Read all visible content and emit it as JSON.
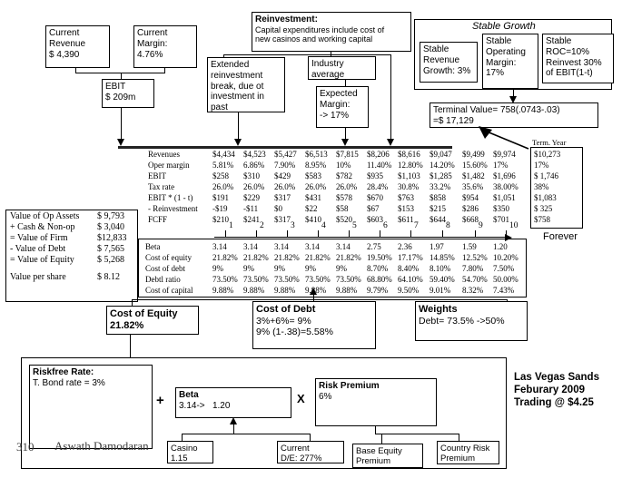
{
  "top": {
    "current_revenue": "Current\nRevenue\n$ 4,390",
    "current_margin": "Current\nMargin:\n4.76%",
    "ebit": "EBIT\n$ 209m",
    "reinvestment_title": "Reinvestment:",
    "reinvestment_body": "Capital expenditures include cost of\nnew casinos and working capital",
    "extended_break": "Extended\nreinvestment\nbreak, due ot\ninvestment in\npast",
    "industry_average": "Industry\naverage",
    "expected_margin": "Expected\nMargin:\n-> 17%"
  },
  "stable_growth": {
    "title": "Stable Growth",
    "revenue_growth": "Stable\nRevenue\nGrowth: 3%",
    "operating_margin": "Stable\nOperating\nMargin:\n17%",
    "roc": "Stable\nROC=10%\nReinvest 30%\nof EBIT(1-t)"
  },
  "terminal_value": "Terminal Value= 758(.0743-.03)\n=$ 17,129",
  "term_year_label": "Term. Year",
  "cashflow_table": {
    "rows": [
      {
        "label": "Revenues",
        "values": [
          "$4,434",
          "$4,523",
          "$5,427",
          "$6,513",
          "$7,815",
          "$8,206",
          "$8,616",
          "$9,047",
          "$9,499",
          "$9,974"
        ],
        "term": "$10,273"
      },
      {
        "label": "Oper margin",
        "values": [
          "5.81%",
          "6.86%",
          "7.90%",
          "8.95%",
          "10%",
          "11.40%",
          "12.80%",
          "14.20%",
          "15.60%",
          "17%"
        ],
        "term": "17%"
      },
      {
        "label": "EBIT",
        "values": [
          "$258",
          "$310",
          "$429",
          "$583",
          "$782",
          "$935",
          "$1,103",
          "$1,285",
          "$1,482",
          "$1,696"
        ],
        "term": "$ 1,746"
      },
      {
        "label": "Tax rate",
        "values": [
          "26.0%",
          "26.0%",
          "26.0%",
          "26.0%",
          "26.0%",
          "28.4%",
          "30.8%",
          "33.2%",
          "35.6%",
          "38.00%"
        ],
        "term": "38%"
      },
      {
        "label": "EBIT * (1 - t)",
        "values": [
          "$191",
          "$229",
          "$317",
          "$431",
          "$578",
          "$670",
          "$763",
          "$858",
          "$954",
          "$1,051"
        ],
        "term": "$1,083"
      },
      {
        "label": "- Reinvestment",
        "values": [
          "-$19",
          "-$11",
          "$0",
          "$22",
          "$58",
          "$67",
          "$153",
          "$215",
          "$286",
          "$350"
        ],
        "term": "$ 325"
      },
      {
        "label": "FCFF",
        "values": [
          "$210",
          "$241",
          "$317",
          "$410",
          "$520",
          "$603",
          "$611",
          "$644",
          "$668",
          "$701"
        ],
        "term": "$758"
      }
    ]
  },
  "timeline": {
    "years": [
      "1",
      "2",
      "3",
      "4",
      "5",
      "6",
      "7",
      "8",
      "9",
      "10"
    ],
    "forever": "Forever"
  },
  "discount_table": {
    "rows": [
      {
        "label": "Beta",
        "values": [
          "3.14",
          "3.14",
          "3.14",
          "3.14",
          "3.14",
          "2.75",
          "2.36",
          "1.97",
          "1.59",
          "1.20"
        ]
      },
      {
        "label": "Cost of equity",
        "values": [
          "21.82%",
          "21.82%",
          "21.82%",
          "21.82%",
          "21.82%",
          "19.50%",
          "17.17%",
          "14.85%",
          "12.52%",
          "10.20%"
        ]
      },
      {
        "label": "Cost of debt",
        "values": [
          "9%",
          "9%",
          "9%",
          "9%",
          "9%",
          "8.70%",
          "8.40%",
          "8.10%",
          "7.80%",
          "7.50%"
        ]
      },
      {
        "label": "Debtl ratio",
        "values": [
          "73.50%",
          "73.50%",
          "73.50%",
          "73.50%",
          "73.50%",
          "68.80%",
          "64.10%",
          "59.40%",
          "54.70%",
          "50.00%"
        ]
      },
      {
        "label": "Cost of capital",
        "values": [
          "9.88%",
          "9.88%",
          "9.88%",
          "9.88%",
          "9.88%",
          "9.79%",
          "9.50%",
          "9.01%",
          "8.32%",
          "7.43%"
        ]
      }
    ]
  },
  "value_block": {
    "rows": [
      {
        "label": "Value of Op Assets",
        "value": "$ 9,793"
      },
      {
        "label": "+ Cash & Non-op",
        "value": "$ 3,040"
      },
      {
        "label": "= Value of Firm",
        "value": "$12,833"
      },
      {
        "label": "- Value of Debt",
        "value": "$ 7,565"
      },
      {
        "label": "= Value of Equity",
        "value": "$ 5,268"
      },
      {
        "label": "Value per share",
        "value": "$ 8.12"
      }
    ]
  },
  "wacc": {
    "cost_of_equity": "Cost of Equity\n21.82%",
    "cost_of_debt_title": "Cost of Debt",
    "cost_of_debt_body": "3%+6%= 9%\n9% (1-.38)=5.58%",
    "weights_title": "Weights",
    "weights_body": "Debt= 73.5% ->50%"
  },
  "coe_inputs": {
    "riskfree_title": "Riskfree Rate:",
    "riskfree_body": "T. Bond rate = 3%",
    "plus": "+",
    "beta_title": "Beta",
    "beta_body": "3.14->   1.20",
    "times": "X",
    "risk_premium_title": "Risk Premium",
    "risk_premium_body": "6%",
    "casino": "Casino\n1.15",
    "current_de": "Current\nD/E: 277%",
    "base_equity_premium": "Base Equity\nPremium",
    "country_risk_premium": "Country Risk\nPremium"
  },
  "caption": "Las Vegas Sands\nFeburary 2009\nTrading @ $4.25",
  "footer": {
    "page": "310",
    "author": "Aswath Damodaran"
  },
  "colors": {
    "line": "#000000",
    "thick_line": "#222222",
    "background": "#ffffff",
    "footer_text": "#3a3a3a"
  }
}
